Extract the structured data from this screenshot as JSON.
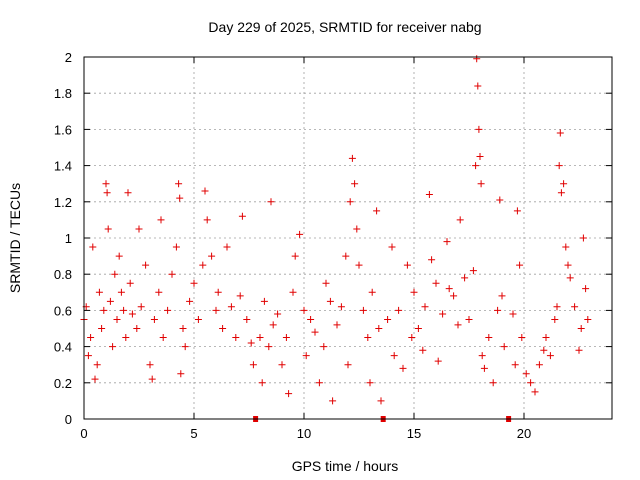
{
  "chart_data": {
    "type": "scatter",
    "title": "Day 229 of 2025, SRMTID for receiver nabg",
    "xlabel": "GPS time / hours",
    "ylabel": "SRMTID / TECUs",
    "xlim": [
      0,
      24
    ],
    "ylim": [
      0,
      2
    ],
    "xticks": [
      0,
      5,
      10,
      15,
      20
    ],
    "yticks": [
      0,
      0.2,
      0.4,
      0.6,
      0.8,
      1,
      1.2,
      1.4,
      1.6,
      1.8,
      2
    ],
    "xtick_labels": [
      "0",
      "5",
      "10",
      "15",
      "20"
    ],
    "ytick_labels": [
      "0",
      "0.2",
      "0.4",
      "0.6",
      "0.8",
      "1",
      "1.2",
      "1.4",
      "1.6",
      "1.8",
      "2"
    ],
    "grid": true,
    "marker": "+",
    "color": "#e00000",
    "data_gaps_hours": [
      7.8,
      13.6,
      19.3
    ],
    "series": [
      {
        "name": "SRMTID",
        "points": [
          [
            0.0,
            0.55
          ],
          [
            0.1,
            0.62
          ],
          [
            0.2,
            0.35
          ],
          [
            0.3,
            0.45
          ],
          [
            0.4,
            0.95
          ],
          [
            0.5,
            0.22
          ],
          [
            0.6,
            0.3
          ],
          [
            0.7,
            0.7
          ],
          [
            0.8,
            0.5
          ],
          [
            0.9,
            0.6
          ],
          [
            1.0,
            1.3
          ],
          [
            1.05,
            1.25
          ],
          [
            1.1,
            1.05
          ],
          [
            1.2,
            0.65
          ],
          [
            1.3,
            0.4
          ],
          [
            1.4,
            0.8
          ],
          [
            1.5,
            0.55
          ],
          [
            1.6,
            0.9
          ],
          [
            1.7,
            0.7
          ],
          [
            1.8,
            0.6
          ],
          [
            1.9,
            0.45
          ],
          [
            2.0,
            1.25
          ],
          [
            2.1,
            0.75
          ],
          [
            2.2,
            0.58
          ],
          [
            2.4,
            0.5
          ],
          [
            2.5,
            1.05
          ],
          [
            2.6,
            0.62
          ],
          [
            2.8,
            0.85
          ],
          [
            3.0,
            0.3
          ],
          [
            3.1,
            0.22
          ],
          [
            3.2,
            0.55
          ],
          [
            3.4,
            0.7
          ],
          [
            3.5,
            1.1
          ],
          [
            3.6,
            0.45
          ],
          [
            3.8,
            0.6
          ],
          [
            4.0,
            0.8
          ],
          [
            4.2,
            0.95
          ],
          [
            4.3,
            1.3
          ],
          [
            4.35,
            1.22
          ],
          [
            4.4,
            0.25
          ],
          [
            4.5,
            0.5
          ],
          [
            4.6,
            0.4
          ],
          [
            4.8,
            0.65
          ],
          [
            5.0,
            0.75
          ],
          [
            5.2,
            0.55
          ],
          [
            5.4,
            0.85
          ],
          [
            5.5,
            1.26
          ],
          [
            5.6,
            1.1
          ],
          [
            5.8,
            0.9
          ],
          [
            6.0,
            0.6
          ],
          [
            6.1,
            0.7
          ],
          [
            6.3,
            0.5
          ],
          [
            6.5,
            0.95
          ],
          [
            6.7,
            0.62
          ],
          [
            6.9,
            0.45
          ],
          [
            7.1,
            0.68
          ],
          [
            7.2,
            1.12
          ],
          [
            7.4,
            0.55
          ],
          [
            7.6,
            0.42
          ],
          [
            7.7,
            0.3
          ],
          [
            8.0,
            0.45
          ],
          [
            8.1,
            0.2
          ],
          [
            8.2,
            0.65
          ],
          [
            8.4,
            0.4
          ],
          [
            8.5,
            1.2
          ],
          [
            8.6,
            0.52
          ],
          [
            8.8,
            0.58
          ],
          [
            9.0,
            0.3
          ],
          [
            9.2,
            0.45
          ],
          [
            9.3,
            0.14
          ],
          [
            9.5,
            0.7
          ],
          [
            9.6,
            0.9
          ],
          [
            9.8,
            1.02
          ],
          [
            10.0,
            0.6
          ],
          [
            10.1,
            0.35
          ],
          [
            10.3,
            0.55
          ],
          [
            10.5,
            0.48
          ],
          [
            10.7,
            0.2
          ],
          [
            10.9,
            0.4
          ],
          [
            11.0,
            0.75
          ],
          [
            11.2,
            0.65
          ],
          [
            11.3,
            0.1
          ],
          [
            11.5,
            0.52
          ],
          [
            11.7,
            0.62
          ],
          [
            11.9,
            0.9
          ],
          [
            12.0,
            0.3
          ],
          [
            12.1,
            1.2
          ],
          [
            12.2,
            1.44
          ],
          [
            12.3,
            1.3
          ],
          [
            12.4,
            1.05
          ],
          [
            12.5,
            0.85
          ],
          [
            12.7,
            0.6
          ],
          [
            12.9,
            0.45
          ],
          [
            13.0,
            0.2
          ],
          [
            13.1,
            0.7
          ],
          [
            13.3,
            1.15
          ],
          [
            13.4,
            0.5
          ],
          [
            13.5,
            0.1
          ],
          [
            13.8,
            0.55
          ],
          [
            14.0,
            0.95
          ],
          [
            14.1,
            0.35
          ],
          [
            14.3,
            0.6
          ],
          [
            14.5,
            0.28
          ],
          [
            14.7,
            0.85
          ],
          [
            14.9,
            0.45
          ],
          [
            15.0,
            0.7
          ],
          [
            15.2,
            0.5
          ],
          [
            15.4,
            0.38
          ],
          [
            15.5,
            0.62
          ],
          [
            15.7,
            1.24
          ],
          [
            15.8,
            0.88
          ],
          [
            16.0,
            0.75
          ],
          [
            16.1,
            0.32
          ],
          [
            16.3,
            0.58
          ],
          [
            16.5,
            0.98
          ],
          [
            16.6,
            0.72
          ],
          [
            16.8,
            0.68
          ],
          [
            17.0,
            0.52
          ],
          [
            17.1,
            1.1
          ],
          [
            17.3,
            0.78
          ],
          [
            17.5,
            0.55
          ],
          [
            17.7,
            0.82
          ],
          [
            17.8,
            1.4
          ],
          [
            17.85,
            1.99
          ],
          [
            17.9,
            1.84
          ],
          [
            17.95,
            1.6
          ],
          [
            18.0,
            1.45
          ],
          [
            18.05,
            1.3
          ],
          [
            18.1,
            0.35
          ],
          [
            18.2,
            0.28
          ],
          [
            18.4,
            0.45
          ],
          [
            18.6,
            0.2
          ],
          [
            18.8,
            0.6
          ],
          [
            18.9,
            1.21
          ],
          [
            19.0,
            0.68
          ],
          [
            19.1,
            0.4
          ],
          [
            19.5,
            0.58
          ],
          [
            19.6,
            0.3
          ],
          [
            19.7,
            1.15
          ],
          [
            19.8,
            0.85
          ],
          [
            19.9,
            0.45
          ],
          [
            20.1,
            0.25
          ],
          [
            20.3,
            0.2
          ],
          [
            20.5,
            0.15
          ],
          [
            20.7,
            0.3
          ],
          [
            20.9,
            0.38
          ],
          [
            21.0,
            0.45
          ],
          [
            21.2,
            0.35
          ],
          [
            21.4,
            0.55
          ],
          [
            21.5,
            0.62
          ],
          [
            21.6,
            1.4
          ],
          [
            21.65,
            1.58
          ],
          [
            21.7,
            1.25
          ],
          [
            21.8,
            1.3
          ],
          [
            21.9,
            0.95
          ],
          [
            22.0,
            0.85
          ],
          [
            22.1,
            0.78
          ],
          [
            22.3,
            0.62
          ],
          [
            22.5,
            0.38
          ],
          [
            22.6,
            0.5
          ],
          [
            22.7,
            1.0
          ],
          [
            22.8,
            0.72
          ],
          [
            22.9,
            0.55
          ]
        ]
      }
    ]
  }
}
